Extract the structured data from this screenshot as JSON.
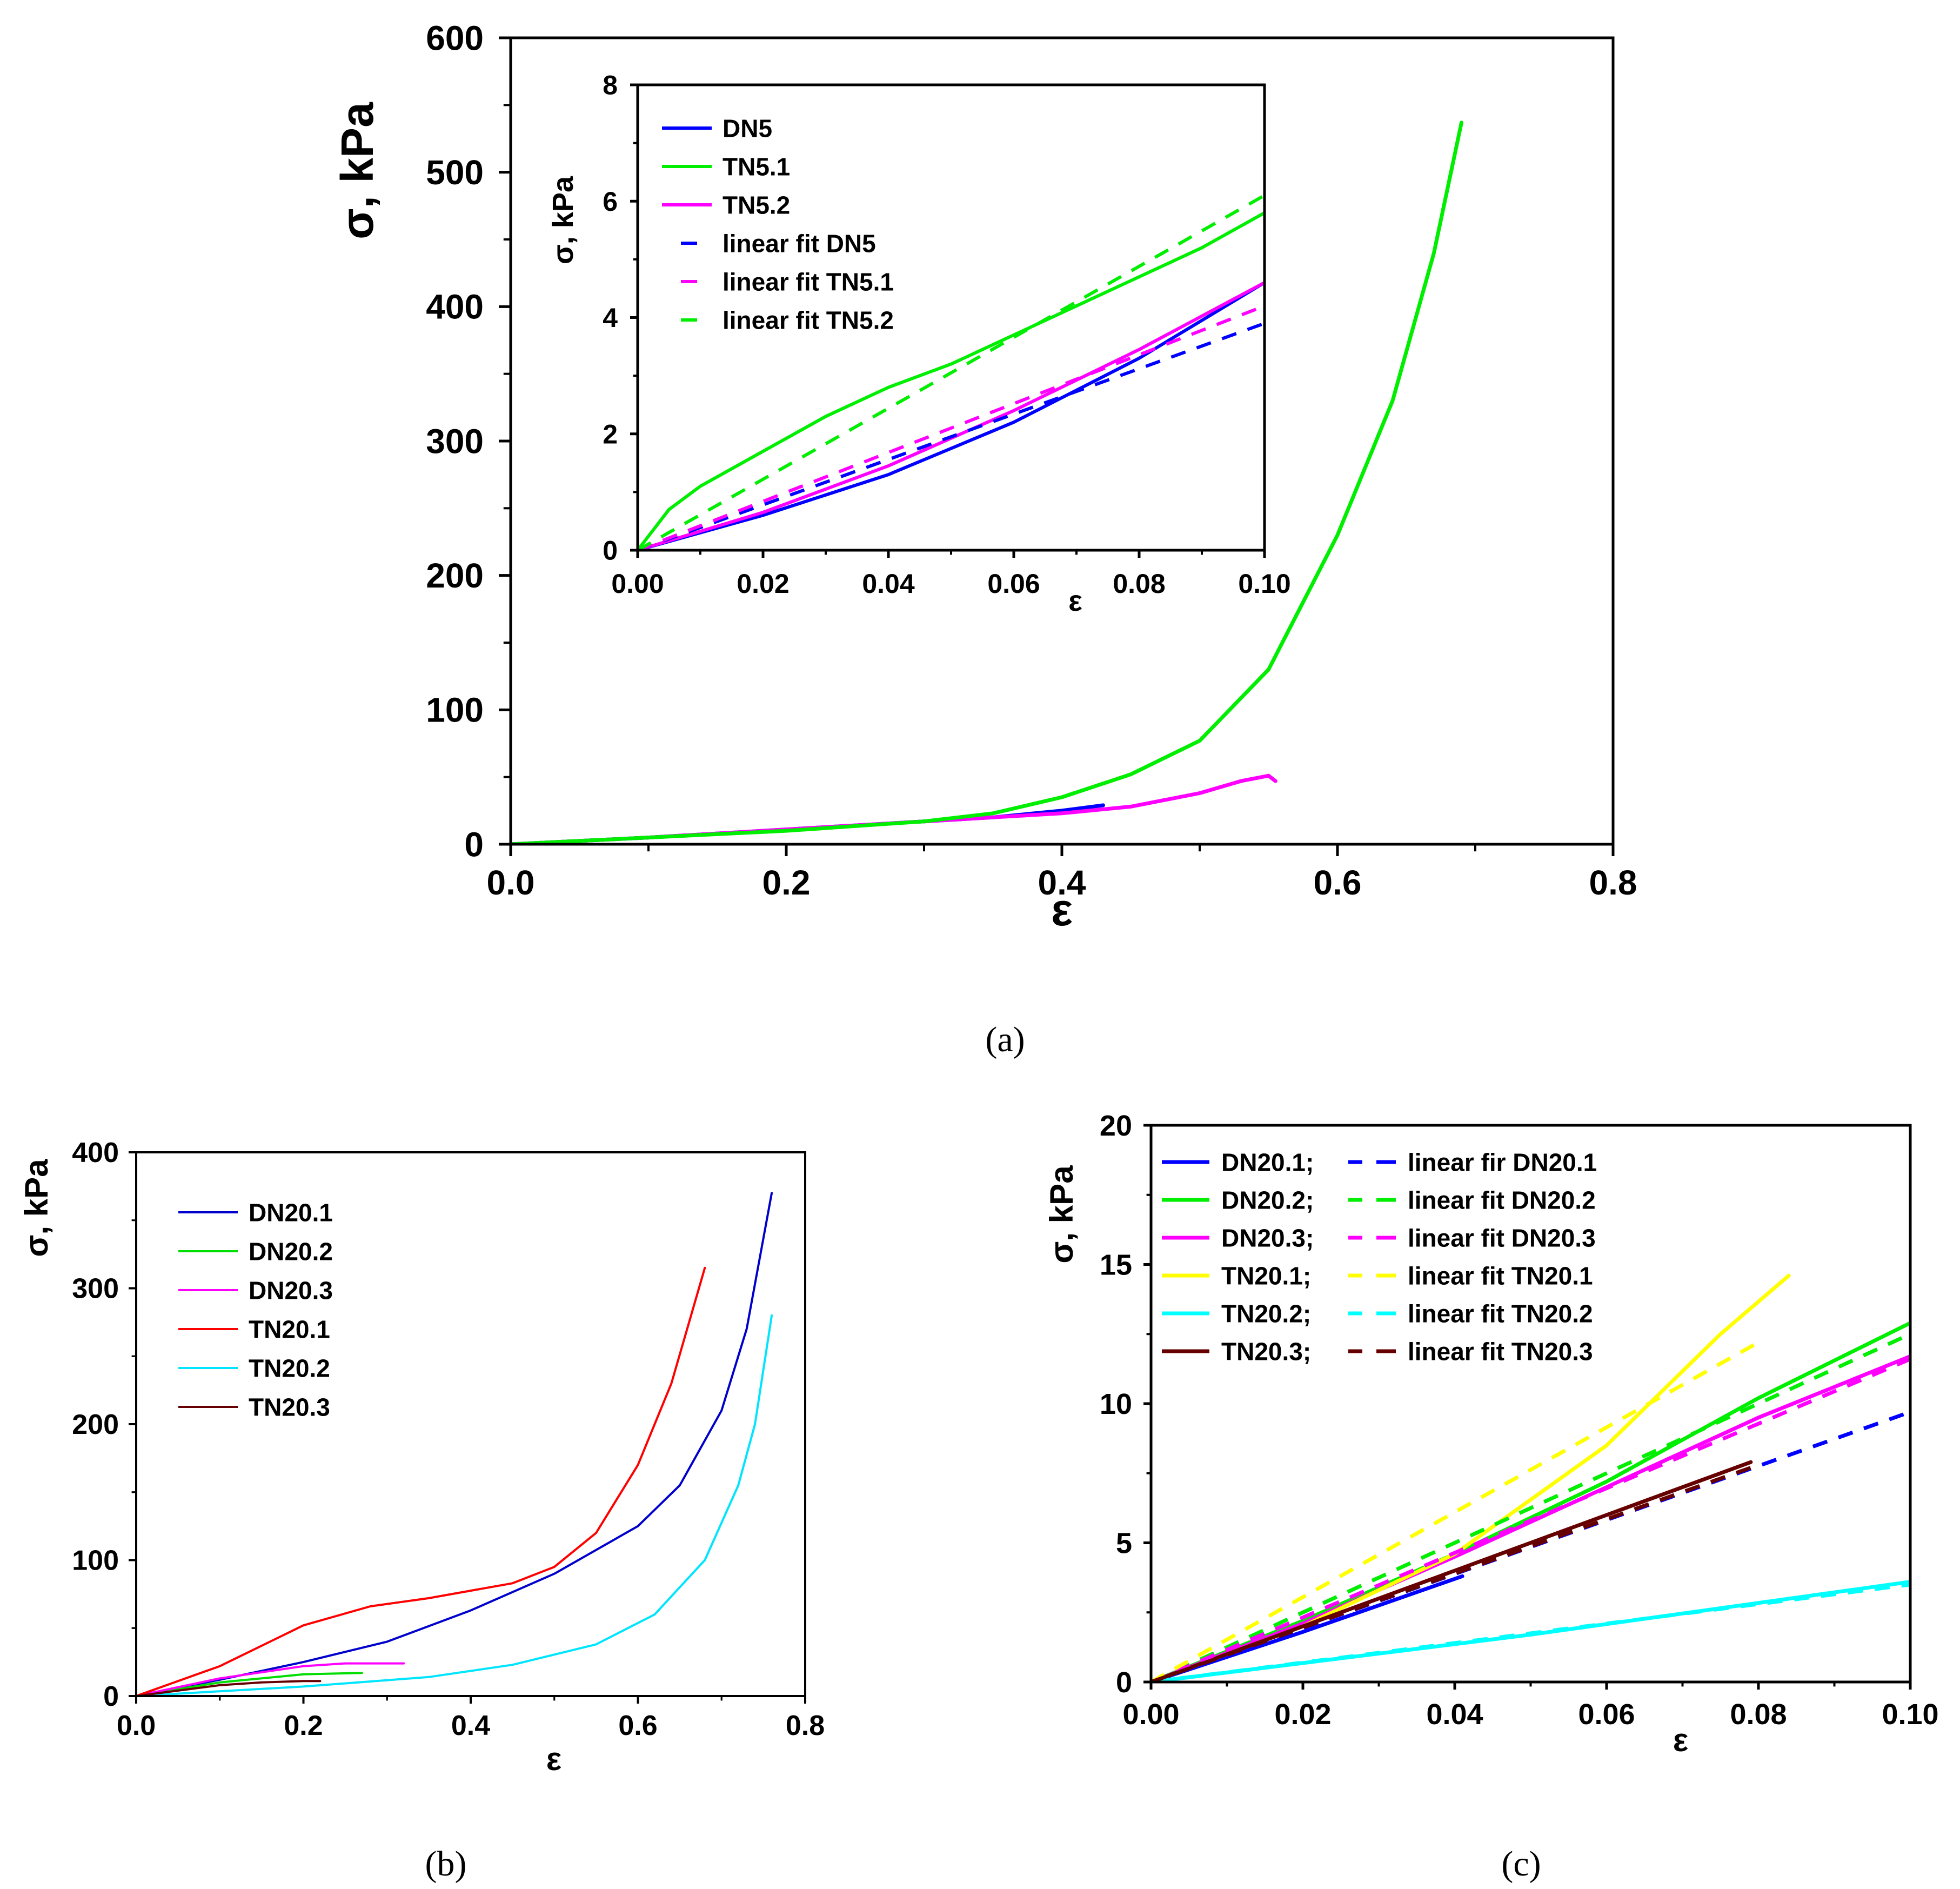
{
  "chart_data": [
    {
      "id": "a_main",
      "type": "line",
      "caption": "(a)",
      "xlabel": "ε",
      "ylabel": "σ, kPa",
      "xlim": [
        0,
        0.8
      ],
      "ylim": [
        0,
        600
      ],
      "xticks": [
        "0.0",
        "0.2",
        "0.4",
        "0.6",
        "0.8"
      ],
      "yticks": [
        "0",
        "100",
        "200",
        "300",
        "400",
        "500",
        "600"
      ],
      "series": [
        {
          "name": "DN5",
          "color": "#0000ff",
          "x": [
            0,
            0.1,
            0.2,
            0.3,
            0.35,
            0.4,
            0.43
          ],
          "y": [
            0,
            5,
            11,
            17,
            20,
            25,
            29
          ]
        },
        {
          "name": "TN5.2",
          "color": "#ff00ff",
          "x": [
            0,
            0.1,
            0.2,
            0.3,
            0.4,
            0.45,
            0.5,
            0.53,
            0.55,
            0.555
          ],
          "y": [
            0,
            5,
            11,
            17,
            23,
            28,
            38,
            47,
            51,
            47
          ]
        },
        {
          "name": "TN5.1",
          "color": "#00ee00",
          "x": [
            0,
            0.1,
            0.2,
            0.3,
            0.35,
            0.4,
            0.45,
            0.5,
            0.55,
            0.6,
            0.64,
            0.67,
            0.69
          ],
          "y": [
            0,
            5,
            10,
            17,
            23,
            35,
            52,
            77,
            130,
            230,
            330,
            440,
            537
          ]
        }
      ]
    },
    {
      "id": "a_inset",
      "type": "line",
      "xlabel": "ε",
      "ylabel": "σ, kPa",
      "xlim": [
        0,
        0.1
      ],
      "ylim": [
        0,
        8
      ],
      "xticks": [
        "0.00",
        "0.02",
        "0.04",
        "0.06",
        "0.08",
        "0.10"
      ],
      "yticks": [
        "0",
        "2",
        "4",
        "6",
        "8"
      ],
      "legend": [
        "DN5",
        "TN5.1",
        "TN5.2",
        "linear fit DN5",
        "linear fit TN5.1",
        "linear fit TN5.2"
      ],
      "series": [
        {
          "name": "DN5",
          "color": "#0000ff",
          "style": "solid",
          "x": [
            0,
            0.02,
            0.04,
            0.06,
            0.08,
            0.1
          ],
          "y": [
            0,
            0.6,
            1.3,
            2.2,
            3.3,
            4.6
          ]
        },
        {
          "name": "TN5.1",
          "color": "#00ee00",
          "style": "solid",
          "x": [
            0,
            0.005,
            0.01,
            0.02,
            0.03,
            0.04,
            0.05,
            0.06,
            0.07,
            0.08,
            0.09,
            0.1
          ],
          "y": [
            0,
            0.7,
            1.1,
            1.7,
            2.3,
            2.8,
            3.2,
            3.7,
            4.2,
            4.7,
            5.2,
            5.8
          ]
        },
        {
          "name": "TN5.2",
          "color": "#ff00ff",
          "style": "solid",
          "x": [
            0,
            0.02,
            0.04,
            0.06,
            0.08,
            0.1
          ],
          "y": [
            0,
            0.65,
            1.45,
            2.4,
            3.45,
            4.6
          ]
        },
        {
          "name": "linear fit DN5",
          "color": "#0000ff",
          "style": "dashed",
          "x": [
            0,
            0.1
          ],
          "y": [
            0,
            3.9
          ]
        },
        {
          "name": "linear fit TN5.1",
          "color": "#ff00ff",
          "style": "dashed",
          "x": [
            0,
            0.1
          ],
          "y": [
            0,
            4.2
          ]
        },
        {
          "name": "linear fit TN5.2",
          "color": "#00ee00",
          "style": "dashed",
          "x": [
            0,
            0.1
          ],
          "y": [
            0,
            6.1
          ]
        }
      ]
    },
    {
      "id": "b",
      "type": "line",
      "caption": "(b)",
      "xlabel": "ε",
      "ylabel": "σ, kPa",
      "xlim": [
        0,
        0.8
      ],
      "ylim": [
        0,
        400
      ],
      "xticks": [
        "0.0",
        "0.2",
        "0.4",
        "0.6",
        "0.8"
      ],
      "yticks": [
        "0",
        "100",
        "200",
        "300",
        "400"
      ],
      "legend": [
        "DN20.1",
        "DN20.2",
        "DN20.3",
        "TN20.1",
        "TN20.2",
        "TN20.3"
      ],
      "series": [
        {
          "name": "DN20.1",
          "color": "#0000cc",
          "x": [
            0,
            0.1,
            0.2,
            0.3,
            0.4,
            0.5,
            0.6,
            0.65,
            0.7,
            0.73,
            0.76
          ],
          "y": [
            0,
            12,
            25,
            40,
            63,
            90,
            125,
            155,
            210,
            270,
            370
          ]
        },
        {
          "name": "DN20.2",
          "color": "#00dd00",
          "x": [
            0,
            0.1,
            0.2,
            0.27
          ],
          "y": [
            0,
            10,
            16,
            17
          ]
        },
        {
          "name": "DN20.3",
          "color": "#ff00ff",
          "x": [
            0,
            0.1,
            0.2,
            0.25,
            0.32
          ],
          "y": [
            0,
            13,
            22,
            24,
            24
          ]
        },
        {
          "name": "TN20.1",
          "color": "#ff0000",
          "x": [
            0,
            0.1,
            0.2,
            0.28,
            0.35,
            0.45,
            0.5,
            0.55,
            0.6,
            0.64,
            0.68
          ],
          "y": [
            0,
            22,
            52,
            66,
            72,
            83,
            95,
            120,
            170,
            230,
            315
          ]
        },
        {
          "name": "TN20.2",
          "color": "#00e5ff",
          "x": [
            0,
            0.2,
            0.35,
            0.45,
            0.55,
            0.62,
            0.68,
            0.72,
            0.74,
            0.76
          ],
          "y": [
            0,
            7,
            14,
            23,
            38,
            60,
            100,
            155,
            200,
            280
          ]
        },
        {
          "name": "TN20.3",
          "color": "#660000",
          "x": [
            0,
            0.1,
            0.15,
            0.2,
            0.22
          ],
          "y": [
            0,
            8,
            10,
            11,
            11
          ]
        }
      ]
    },
    {
      "id": "c",
      "type": "line",
      "caption": "(c)",
      "xlabel": "ε",
      "ylabel": "σ, kPa",
      "xlim": [
        0,
        0.1
      ],
      "ylim": [
        0,
        20
      ],
      "xticks": [
        "0.00",
        "0.02",
        "0.04",
        "0.06",
        "0.08",
        "0.10"
      ],
      "yticks": [
        "0",
        "5",
        "10",
        "15",
        "20"
      ],
      "legend": [
        {
          "solid": "DN20.1;",
          "dashed": "linear fir DN20.1"
        },
        {
          "solid": "DN20.2;",
          "dashed": "linear fit DN20.2"
        },
        {
          "solid": "DN20.3;",
          "dashed": "linear fit DN20.3"
        },
        {
          "solid": "TN20.1;",
          "dashed": "linear fit TN20.1"
        },
        {
          "solid": "TN20.2;",
          "dashed": "linear fit TN20.2"
        },
        {
          "solid": "TN20.3;",
          "dashed": "linear fit TN20.3"
        }
      ],
      "series": [
        {
          "name": "DN20.1",
          "color": "#0000ff",
          "style": "solid",
          "x": [
            0,
            0.02,
            0.041
          ],
          "y": [
            0,
            1.8,
            3.8
          ]
        },
        {
          "name": "DN20.2",
          "color": "#00ee00",
          "style": "solid",
          "x": [
            0,
            0.02,
            0.04,
            0.06,
            0.08,
            0.1
          ],
          "y": [
            0,
            2.2,
            4.6,
            7.2,
            10.2,
            12.9
          ]
        },
        {
          "name": "DN20.3",
          "color": "#ff00ff",
          "style": "solid",
          "x": [
            0,
            0.02,
            0.04,
            0.06,
            0.08,
            0.1
          ],
          "y": [
            0,
            2.1,
            4.5,
            7.0,
            9.5,
            11.7
          ]
        },
        {
          "name": "TN20.1",
          "color": "#ffff00",
          "style": "solid",
          "x": [
            0,
            0.02,
            0.04,
            0.06,
            0.075,
            0.084
          ],
          "y": [
            0,
            2.0,
            4.6,
            8.5,
            12.5,
            14.6
          ]
        },
        {
          "name": "TN20.2",
          "color": "#00ffff",
          "style": "solid",
          "x": [
            0,
            0.05,
            0.1
          ],
          "y": [
            0,
            1.7,
            3.6
          ]
        },
        {
          "name": "TN20.3",
          "color": "#660000",
          "style": "solid",
          "x": [
            0,
            0.04,
            0.079
          ],
          "y": [
            0,
            4.0,
            7.9
          ]
        },
        {
          "name": "linear fir DN20.1",
          "color": "#0000ff",
          "style": "dashed",
          "x": [
            0,
            0.1
          ],
          "y": [
            0,
            9.7
          ]
        },
        {
          "name": "linear fit DN20.2",
          "color": "#00ee00",
          "style": "dashed",
          "x": [
            0,
            0.1
          ],
          "y": [
            0,
            12.5
          ]
        },
        {
          "name": "linear fit DN20.3",
          "color": "#ff00ff",
          "style": "dashed",
          "x": [
            0,
            0.1
          ],
          "y": [
            0,
            11.6
          ]
        },
        {
          "name": "linear fit TN20.1",
          "color": "#ffff00",
          "style": "dashed",
          "x": [
            0,
            0.08
          ],
          "y": [
            0,
            12.2
          ]
        },
        {
          "name": "linear fit TN20.2",
          "color": "#00ffff",
          "style": "dashed",
          "x": [
            0,
            0.1
          ],
          "y": [
            0,
            3.5
          ]
        },
        {
          "name": "linear fit TN20.3",
          "color": "#660000",
          "style": "dashed",
          "x": [
            0,
            0.079
          ],
          "y": [
            0,
            7.7
          ]
        }
      ]
    }
  ]
}
